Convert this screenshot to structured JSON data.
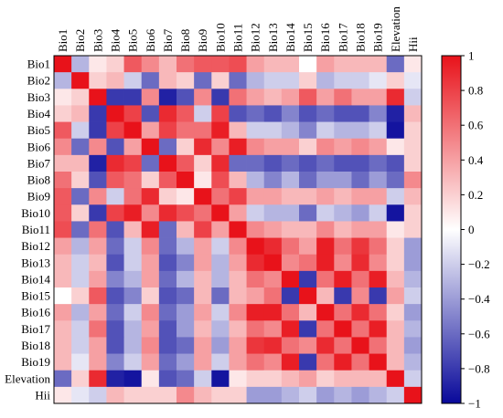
{
  "chart_data": {
    "type": "heatmap",
    "variables": [
      "Bio1",
      "Bio2",
      "Bio3",
      "Bio4",
      "Bio5",
      "Bio6",
      "Bio7",
      "Bio8",
      "Bio9",
      "Bio10",
      "Bio11",
      "Bio12",
      "Bio13",
      "Bio14",
      "Bio15",
      "Bio16",
      "Bio17",
      "Bio18",
      "Bio19",
      "Elevation",
      "Hii"
    ],
    "colorbar": {
      "min": -1,
      "max": 1,
      "ticks": [
        1,
        0.8,
        0.6,
        0.4,
        0.2,
        0,
        -0.2,
        -0.4,
        -0.6,
        -0.8,
        -1
      ],
      "colors": {
        "neg": "#08089a",
        "zero": "#ffffff",
        "pos": "#e8121a"
      }
    },
    "matrix": [
      [
        1.0,
        -0.3,
        0.1,
        0.2,
        0.7,
        0.5,
        0.3,
        0.6,
        0.7,
        0.7,
        0.75,
        0.4,
        0.3,
        0.3,
        0.0,
        0.4,
        0.3,
        0.3,
        0.3,
        -0.6,
        0.1
      ],
      [
        -0.3,
        1.0,
        0.2,
        0.3,
        -0.2,
        -0.6,
        0.3,
        0.2,
        -0.6,
        0.2,
        -0.6,
        -0.3,
        -0.2,
        -0.2,
        0.2,
        -0.3,
        -0.2,
        -0.2,
        -0.1,
        0.2,
        -0.1
      ],
      [
        0.1,
        0.2,
        1.0,
        -0.8,
        -0.8,
        0.5,
        -0.9,
        -0.7,
        0.5,
        -0.8,
        0.6,
        0.4,
        0.3,
        0.4,
        0.7,
        0.4,
        0.6,
        0.4,
        0.4,
        0.9,
        -0.2
      ],
      [
        0.2,
        0.3,
        -0.8,
        1.0,
        0.8,
        -0.7,
        0.9,
        0.7,
        -0.2,
        0.8,
        -0.7,
        -0.6,
        -0.7,
        -0.5,
        -0.7,
        -0.6,
        -0.7,
        -0.7,
        -0.5,
        -0.9,
        0.3
      ],
      [
        0.7,
        -0.2,
        -0.8,
        0.8,
        1.0,
        0.4,
        0.8,
        0.6,
        0.6,
        0.95,
        0.3,
        -0.2,
        -0.2,
        -0.3,
        -0.5,
        -0.2,
        -0.3,
        -0.3,
        -0.2,
        -0.95,
        0.2
      ],
      [
        0.5,
        -0.6,
        0.5,
        -0.7,
        0.4,
        1.0,
        -0.6,
        0.2,
        0.9,
        0.5,
        0.95,
        0.5,
        0.4,
        0.4,
        0.2,
        0.5,
        0.4,
        0.5,
        0.4,
        0.1,
        0.2
      ],
      [
        0.3,
        0.3,
        -0.9,
        0.9,
        0.8,
        -0.6,
        1.0,
        0.7,
        0.2,
        0.9,
        -0.6,
        -0.6,
        -0.7,
        -0.6,
        -0.7,
        -0.6,
        -0.7,
        -0.7,
        -0.6,
        -0.7,
        0.2
      ],
      [
        0.6,
        0.2,
        -0.7,
        0.7,
        0.6,
        0.2,
        0.7,
        1.0,
        0.1,
        0.75,
        0.3,
        -0.3,
        -0.5,
        -0.3,
        -0.6,
        -0.4,
        -0.4,
        -0.6,
        -0.4,
        -0.6,
        0.5
      ],
      [
        0.7,
        -0.6,
        0.5,
        -0.2,
        0.6,
        0.9,
        0.2,
        0.1,
        1.0,
        0.6,
        0.8,
        0.4,
        0.4,
        0.3,
        0.3,
        0.4,
        0.3,
        0.4,
        0.4,
        -0.2,
        0.3
      ],
      [
        0.7,
        0.2,
        -0.8,
        0.8,
        0.95,
        0.5,
        0.9,
        0.75,
        0.6,
        1.0,
        0.4,
        -0.2,
        -0.3,
        -0.3,
        -0.6,
        -0.2,
        -0.3,
        -0.4,
        -0.2,
        -0.95,
        0.2
      ],
      [
        0.75,
        -0.6,
        0.6,
        -0.7,
        0.3,
        0.95,
        -0.6,
        0.3,
        0.8,
        0.4,
        1.0,
        0.5,
        0.4,
        0.3,
        0.3,
        0.5,
        0.3,
        0.4,
        0.4,
        0.1,
        0.2
      ],
      [
        0.4,
        -0.3,
        0.4,
        -0.6,
        -0.2,
        0.5,
        -0.6,
        -0.3,
        0.4,
        -0.2,
        0.5,
        1.0,
        0.9,
        0.6,
        0.4,
        0.95,
        0.6,
        0.85,
        0.6,
        0.2,
        -0.4
      ],
      [
        0.3,
        -0.2,
        0.3,
        -0.7,
        -0.2,
        0.4,
        -0.7,
        -0.5,
        0.4,
        -0.3,
        0.4,
        0.9,
        1.0,
        0.5,
        0.6,
        0.95,
        0.5,
        0.9,
        0.5,
        0.2,
        -0.4
      ],
      [
        0.3,
        -0.2,
        0.4,
        -0.5,
        -0.3,
        0.4,
        -0.6,
        -0.3,
        0.3,
        -0.3,
        0.3,
        0.6,
        0.5,
        1.0,
        -0.8,
        0.6,
        0.95,
        0.6,
        0.95,
        0.3,
        -0.3
      ],
      [
        0.0,
        0.2,
        0.7,
        -0.7,
        -0.5,
        0.2,
        -0.7,
        -0.6,
        0.3,
        -0.6,
        0.3,
        0.4,
        0.6,
        -0.8,
        1.0,
        0.3,
        -0.8,
        0.5,
        -0.8,
        0.4,
        -0.2
      ],
      [
        0.4,
        -0.3,
        0.4,
        -0.6,
        -0.2,
        0.5,
        -0.6,
        -0.4,
        0.4,
        -0.2,
        0.5,
        0.95,
        0.95,
        0.6,
        0.3,
        1.0,
        0.6,
        0.9,
        0.6,
        0.2,
        -0.4
      ],
      [
        0.3,
        -0.2,
        0.6,
        -0.7,
        -0.3,
        0.4,
        -0.7,
        -0.4,
        0.3,
        -0.3,
        0.3,
        0.6,
        0.5,
        0.95,
        -0.8,
        0.6,
        1.0,
        0.6,
        0.95,
        0.3,
        -0.3
      ],
      [
        0.3,
        -0.2,
        0.4,
        -0.7,
        -0.3,
        0.5,
        -0.7,
        -0.6,
        0.4,
        -0.4,
        0.4,
        0.85,
        0.9,
        0.6,
        0.5,
        0.9,
        0.6,
        1.0,
        0.6,
        0.3,
        -0.4
      ],
      [
        0.3,
        -0.1,
        0.4,
        -0.5,
        -0.2,
        0.4,
        -0.6,
        -0.4,
        0.4,
        -0.2,
        0.4,
        0.6,
        0.5,
        0.95,
        -0.8,
        0.6,
        0.95,
        0.6,
        1.0,
        0.3,
        -0.3
      ],
      [
        -0.6,
        0.2,
        0.9,
        -0.9,
        -0.95,
        0.1,
        -0.7,
        -0.6,
        -0.2,
        -0.95,
        0.1,
        0.2,
        0.2,
        0.3,
        0.4,
        0.2,
        0.3,
        0.3,
        0.3,
        1.0,
        -0.2
      ],
      [
        0.1,
        -0.1,
        -0.2,
        0.3,
        0.2,
        0.2,
        0.2,
        0.5,
        0.3,
        0.2,
        0.2,
        -0.4,
        -0.4,
        -0.3,
        -0.2,
        -0.4,
        -0.3,
        -0.4,
        -0.3,
        -0.2,
        1.0
      ]
    ]
  }
}
